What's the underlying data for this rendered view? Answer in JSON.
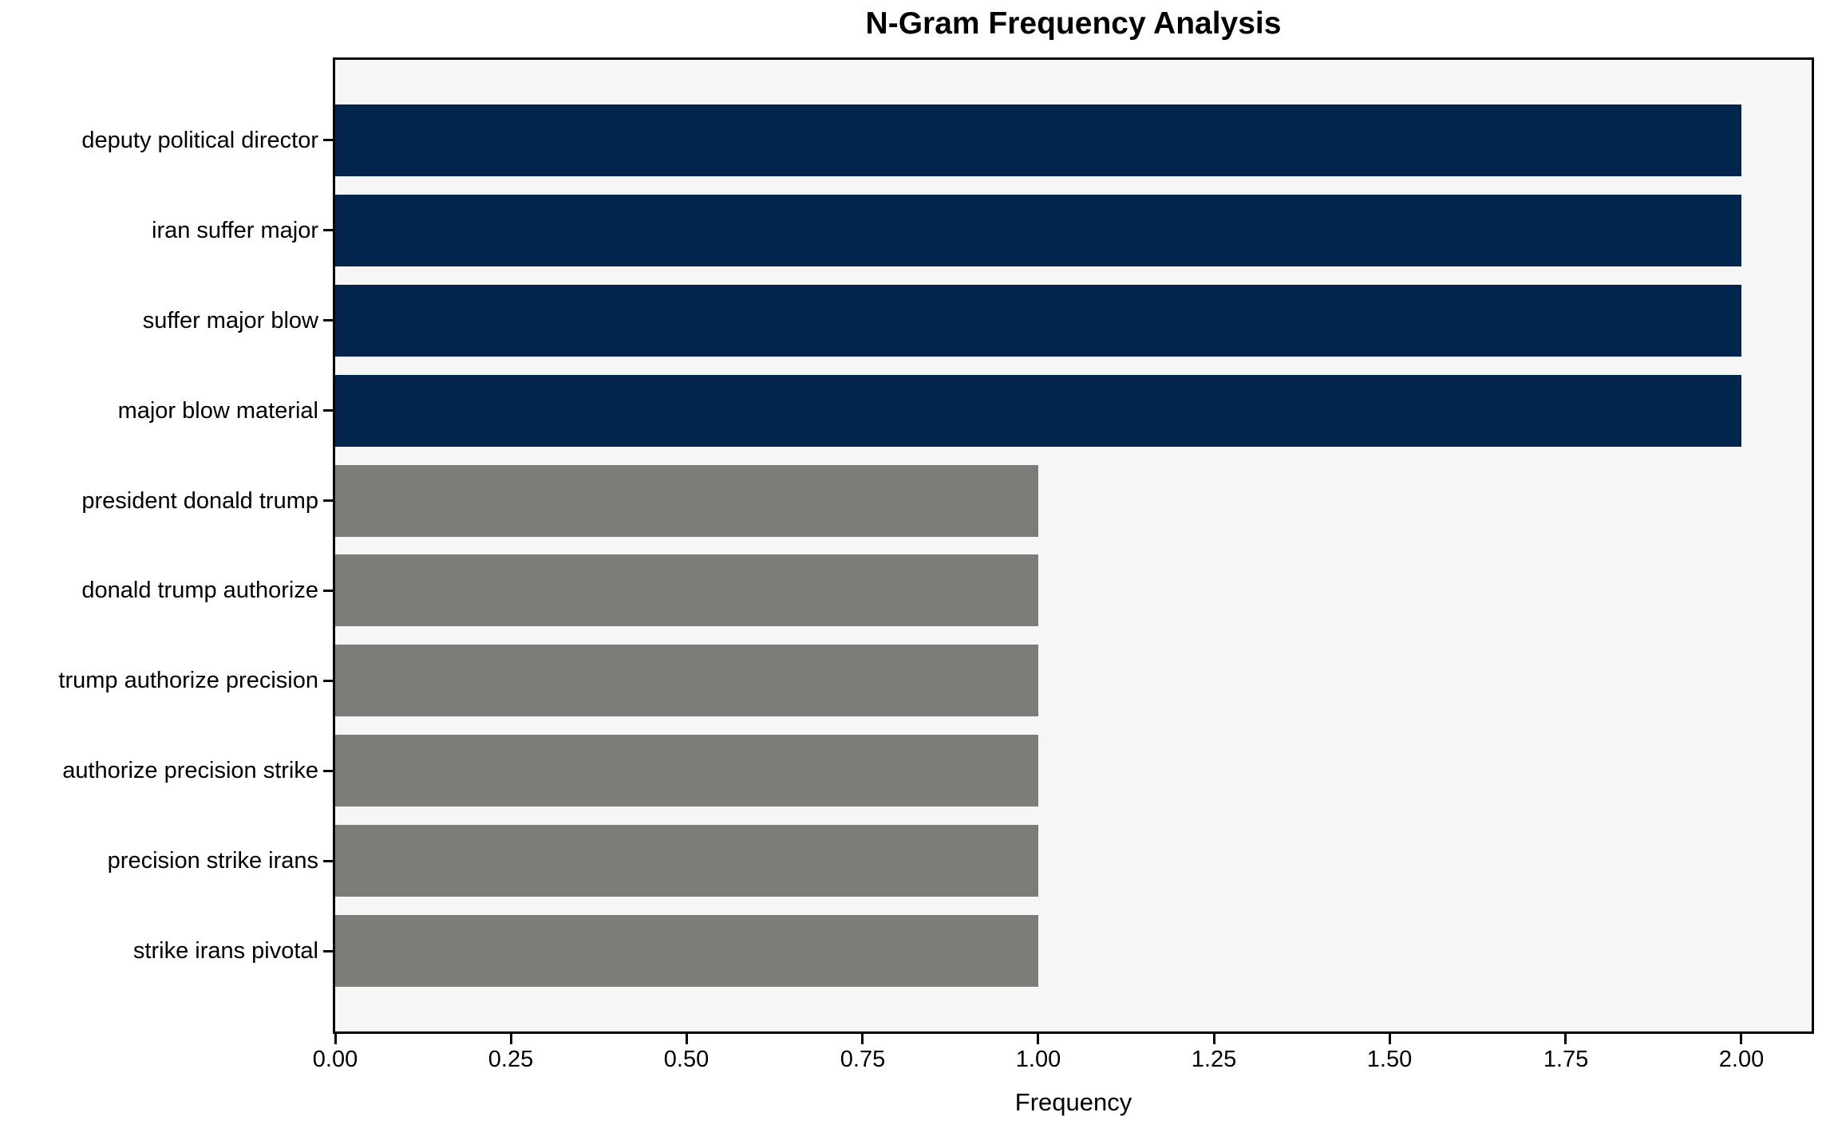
{
  "chart_data": {
    "type": "bar",
    "orientation": "horizontal",
    "title": "N-Gram Frequency Analysis",
    "xlabel": "Frequency",
    "ylabel": "",
    "categories": [
      "deputy political director",
      "iran suffer major",
      "suffer major blow",
      "major blow material",
      "president donald trump",
      "donald trump authorize",
      "trump authorize precision",
      "authorize precision strike",
      "precision strike irans",
      "strike irans pivotal"
    ],
    "values": [
      2,
      2,
      2,
      2,
      1,
      1,
      1,
      1,
      1,
      1
    ],
    "bar_colors": [
      "#02254D",
      "#02254D",
      "#02254D",
      "#02254D",
      "#7C7C79",
      "#7C7C79",
      "#7C7C79",
      "#7C7C79",
      "#7C7C79",
      "#7C7C79"
    ],
    "x_ticks": [
      "0.00",
      "0.25",
      "0.50",
      "0.75",
      "1.00",
      "1.25",
      "1.50",
      "1.75",
      "2.00"
    ],
    "x_tick_values": [
      0,
      0.25,
      0.5,
      0.75,
      1.0,
      1.25,
      1.5,
      1.75,
      2.0
    ],
    "xlim": [
      0,
      2.1
    ],
    "grid": false,
    "legend": false,
    "plot_background": "#F6F6F6",
    "figure_background": "#FFFFFF",
    "spine_color": "#000000",
    "text_color": "#000000"
  }
}
